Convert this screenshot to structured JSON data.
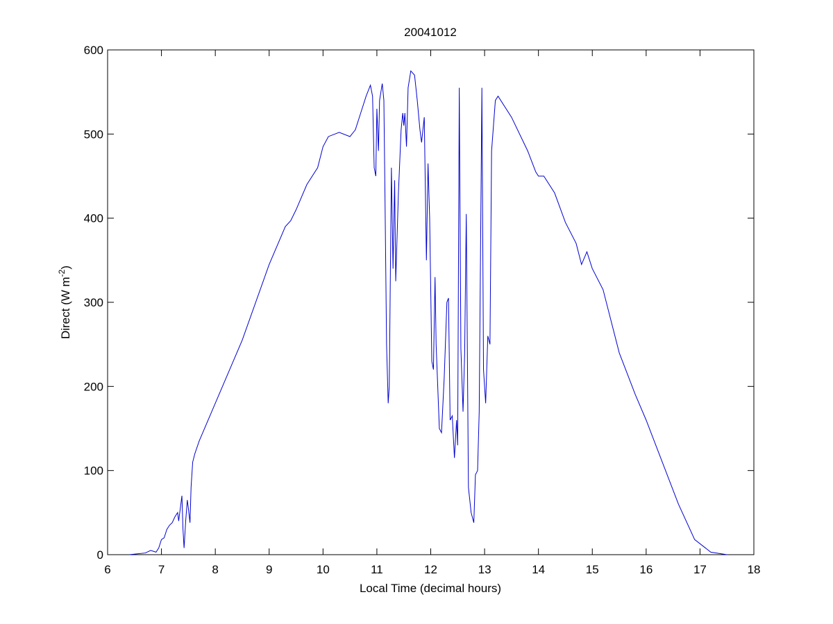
{
  "chart_data": {
    "type": "line",
    "title": "20041012",
    "xlabel": "Local Time (decimal hours)",
    "ylabel": [
      "Direct (W m",
      "-2",
      ")"
    ],
    "color": "#0000d0",
    "xlim": [
      6,
      18
    ],
    "xticks": [
      6,
      7,
      8,
      9,
      10,
      11,
      12,
      13,
      14,
      15,
      16,
      17,
      18
    ],
    "ylim": [
      0,
      600
    ],
    "yticks": [
      0,
      100,
      200,
      300,
      400,
      500,
      600
    ],
    "grid": false,
    "x": [
      6.4,
      6.7,
      6.8,
      6.85,
      6.9,
      6.95,
      7.0,
      7.05,
      7.1,
      7.15,
      7.2,
      7.25,
      7.3,
      7.32,
      7.35,
      7.38,
      7.4,
      7.42,
      7.45,
      7.48,
      7.5,
      7.53,
      7.55,
      7.58,
      7.62,
      7.7,
      8.0,
      8.5,
      9.0,
      9.3,
      9.4,
      9.5,
      9.7,
      9.9,
      10.0,
      10.1,
      10.3,
      10.5,
      10.6,
      10.7,
      10.8,
      10.88,
      10.92,
      10.95,
      10.98,
      11.0,
      11.03,
      11.05,
      11.1,
      11.13,
      11.15,
      11.18,
      11.21,
      11.23,
      11.27,
      11.3,
      11.33,
      11.35,
      11.4,
      11.45,
      11.48,
      11.5,
      11.52,
      11.55,
      11.58,
      11.63,
      11.7,
      11.75,
      11.8,
      11.83,
      11.88,
      11.92,
      11.95,
      11.98,
      12.02,
      12.05,
      12.08,
      12.1,
      12.13,
      12.16,
      12.2,
      12.25,
      12.3,
      12.33,
      12.36,
      12.4,
      12.44,
      12.48,
      12.5,
      12.53,
      12.56,
      12.6,
      12.63,
      12.66,
      12.7,
      12.75,
      12.8,
      12.83,
      12.87,
      12.9,
      12.95,
      12.98,
      13.02,
      13.06,
      13.1,
      13.13,
      13.2,
      13.25,
      13.5,
      13.8,
      13.95,
      14.0,
      14.1,
      14.3,
      14.5,
      14.7,
      14.8,
      14.9,
      15.0,
      15.2,
      15.5,
      15.8,
      16.0,
      16.3,
      16.6,
      16.9,
      17.2,
      17.5
    ],
    "values": [
      0,
      2,
      5,
      4,
      3,
      8,
      18,
      20,
      30,
      35,
      38,
      45,
      50,
      40,
      55,
      70,
      30,
      8,
      40,
      65,
      55,
      38,
      80,
      110,
      120,
      135,
      180,
      255,
      345,
      390,
      397,
      410,
      440,
      460,
      485,
      497,
      502,
      497,
      505,
      525,
      545,
      558,
      545,
      460,
      450,
      530,
      480,
      540,
      560,
      540,
      430,
      250,
      180,
      200,
      460,
      340,
      445,
      325,
      430,
      505,
      525,
      510,
      525,
      485,
      555,
      575,
      570,
      540,
      505,
      490,
      520,
      350,
      465,
      400,
      230,
      220,
      330,
      250,
      200,
      150,
      145,
      210,
      300,
      305,
      160,
      165,
      115,
      160,
      130,
      555,
      245,
      170,
      240,
      405,
      80,
      50,
      38,
      95,
      100,
      170,
      555,
      220,
      180,
      260,
      250,
      480,
      540,
      545,
      520,
      480,
      455,
      450,
      450,
      430,
      395,
      370,
      345,
      360,
      340,
      315,
      240,
      190,
      160,
      110,
      60,
      18,
      3,
      0
    ]
  }
}
